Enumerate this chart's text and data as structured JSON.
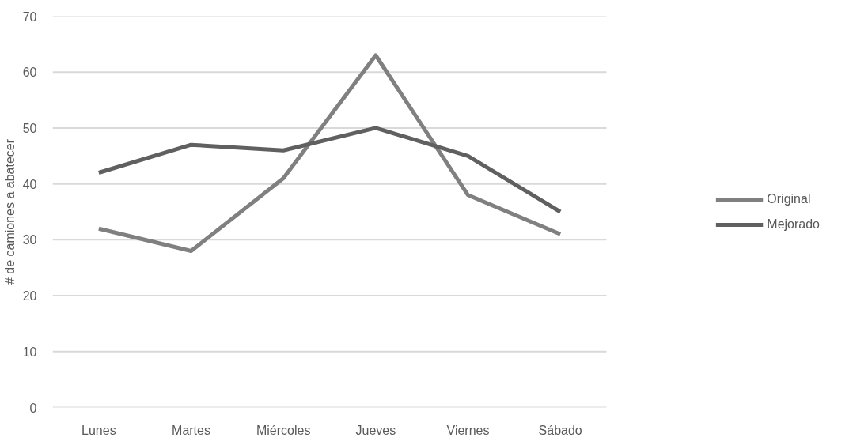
{
  "chart_data": {
    "type": "line",
    "ylabel": "# de camiones a abatecer",
    "categories": [
      "Lunes",
      "Martes",
      "Miércoles",
      "Jueves",
      "Viernes",
      "Sábado"
    ],
    "series": [
      {
        "name": "Original",
        "color": "#808080",
        "values": [
          32,
          28,
          41,
          63,
          38,
          31
        ]
      },
      {
        "name": "Mejorado",
        "color": "#606060",
        "values": [
          42,
          47,
          46,
          50,
          45,
          35
        ]
      }
    ],
    "ylim": [
      0,
      70
    ],
    "yticks": [
      0,
      10,
      20,
      30,
      40,
      50,
      60,
      70
    ],
    "grid": "y",
    "legend": "right",
    "line_style": "solid",
    "marker": "none"
  }
}
